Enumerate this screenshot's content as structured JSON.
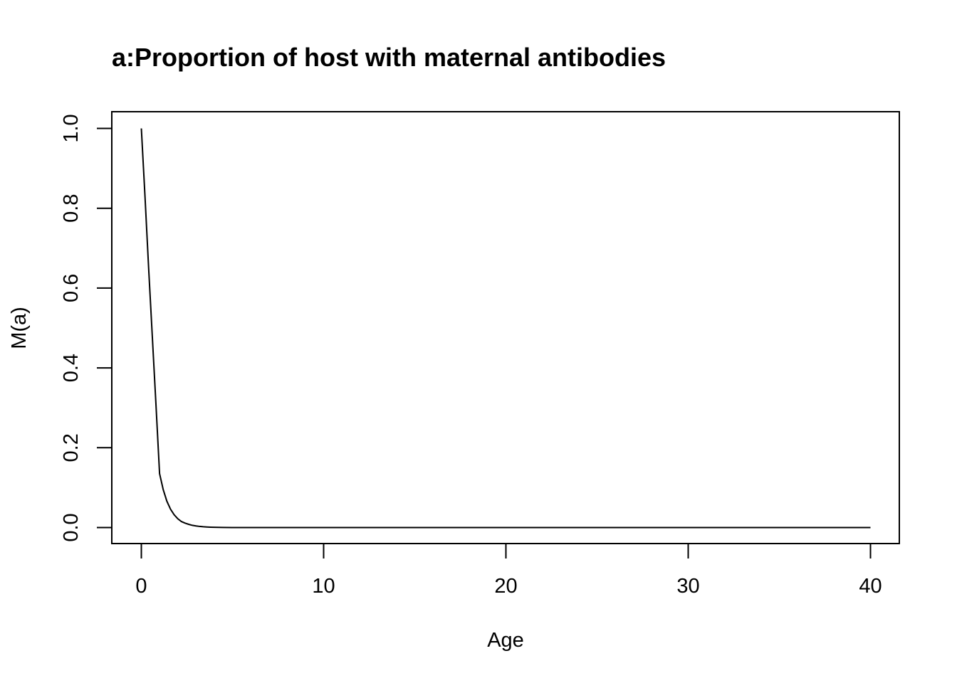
{
  "chart_data": {
    "type": "line",
    "title": "a:Proportion of host with maternal antibodies",
    "xlabel": "Age",
    "ylabel": "M(a)",
    "xlim": [
      0,
      40
    ],
    "ylim": [
      0,
      1
    ],
    "x_ticks": [
      "0",
      "10",
      "20",
      "30",
      "40"
    ],
    "y_ticks": [
      "0.0",
      "0.2",
      "0.4",
      "0.6",
      "0.8",
      "1.0"
    ],
    "grid": false,
    "legend": "none",
    "series": [
      {
        "color": "#000000",
        "x": [
          0,
          0.2,
          0.4,
          0.6,
          0.8,
          1.0,
          1.2,
          1.4,
          1.6,
          1.8,
          2.0,
          2.2,
          2.4,
          2.6,
          2.8,
          3.0,
          3.2,
          3.4,
          3.6,
          3.8,
          4.0,
          4.5,
          5,
          6,
          8,
          10,
          15,
          20,
          25,
          30,
          35,
          40
        ],
        "y": [
          1.0,
          0.83,
          0.65,
          0.48,
          0.31,
          0.135,
          0.095,
          0.066,
          0.046,
          0.032,
          0.022,
          0.015,
          0.011,
          0.008,
          0.0055,
          0.004,
          0.0028,
          0.002,
          0.0014,
          0.001,
          0.0007,
          0.0003,
          0.0001,
          0.0,
          0.0,
          0.0,
          0.0,
          0.0,
          0.0,
          0.0,
          0.0,
          0.0
        ]
      }
    ]
  }
}
